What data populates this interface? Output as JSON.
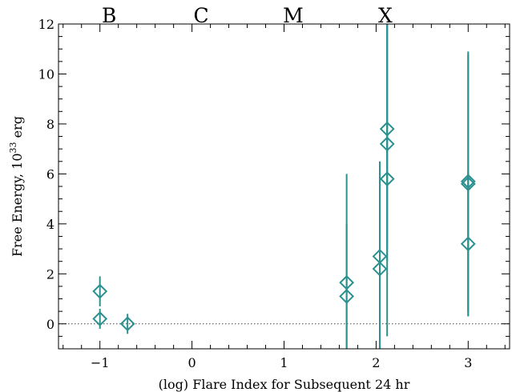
{
  "chart_data": {
    "type": "scatter",
    "title": "",
    "xlabel": "(log) Flare Index for Subsequent 24 hr",
    "ylabel_main": "Free Energy, 10",
    "ylabel_exp": "33",
    "ylabel_unit": " erg",
    "xlim": [
      -1.45,
      3.45
    ],
    "ylim": [
      -1,
      12
    ],
    "xticks": [
      -1,
      0,
      1,
      2,
      3
    ],
    "xtick_labels": [
      "−1",
      "0",
      "1",
      "2",
      "3"
    ],
    "yticks": [
      0,
      2,
      4,
      6,
      8,
      10,
      12
    ],
    "ytick_labels": [
      "0",
      "2",
      "4",
      "6",
      "8",
      "10",
      "12"
    ],
    "class_labels": [
      {
        "label": "B",
        "x": -0.9
      },
      {
        "label": "C",
        "x": 0.1
      },
      {
        "label": "M",
        "x": 1.1
      },
      {
        "label": "X",
        "x": 2.1
      }
    ],
    "zero_line": true,
    "color": "#2a9090",
    "points": [
      {
        "x": -1.0,
        "y": 1.3,
        "ylo": 0.7,
        "yhi": 1.9
      },
      {
        "x": -1.0,
        "y": 0.2,
        "ylo": -0.2,
        "yhi": 0.6
      },
      {
        "x": -0.7,
        "y": 0.0,
        "ylo": -0.4,
        "yhi": 0.4
      },
      {
        "x": 1.68,
        "y": 1.65,
        "ylo": -1.0,
        "yhi": 6.0
      },
      {
        "x": 1.68,
        "y": 1.1,
        "ylo": -1.0,
        "yhi": 4.0
      },
      {
        "x": 2.04,
        "y": 2.7,
        "ylo": -1.0,
        "yhi": 6.5
      },
      {
        "x": 2.04,
        "y": 2.2,
        "ylo": -1.0,
        "yhi": 5.5
      },
      {
        "x": 2.12,
        "y": 7.8,
        "ylo": 3.0,
        "yhi": 12.0
      },
      {
        "x": 2.12,
        "y": 7.2,
        "ylo": 2.5,
        "yhi": 12.0
      },
      {
        "x": 2.12,
        "y": 5.8,
        "ylo": -0.5,
        "yhi": 12.0
      },
      {
        "x": 3.0,
        "y": 5.7,
        "ylo": 0.5,
        "yhi": 10.9
      },
      {
        "x": 3.0,
        "y": 5.6,
        "ylo": 0.3,
        "yhi": 10.8
      },
      {
        "x": 3.0,
        "y": 3.2,
        "ylo": 0.3,
        "yhi": 6.1
      }
    ]
  }
}
